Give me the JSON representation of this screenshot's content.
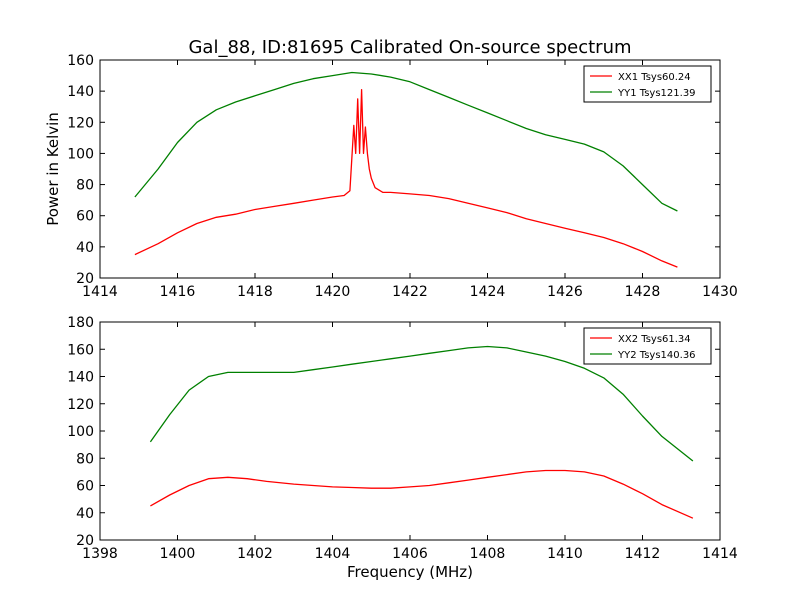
{
  "figure": {
    "title": "Gal_88, ID:81695 Calibrated On-source spectrum",
    "xlabel": "Frequency (MHz)",
    "ylabel": "Power in Kelvin"
  },
  "chart_data": [
    {
      "type": "line",
      "title": "Gal_88, ID:81695 Calibrated On-source spectrum",
      "ylabel": "Power in Kelvin",
      "xlabel": "",
      "xlim": [
        1414,
        1430
      ],
      "ylim": [
        20,
        160
      ],
      "xticks": [
        1414,
        1416,
        1418,
        1420,
        1422,
        1424,
        1426,
        1428,
        1430
      ],
      "yticks": [
        20,
        40,
        60,
        80,
        100,
        120,
        140,
        160
      ],
      "grid": false,
      "legend_position": "top-right",
      "series": [
        {
          "name": "XX1 Tsys60.24",
          "color": "#ff0000",
          "x": [
            1414.9,
            1415.5,
            1416,
            1416.5,
            1417,
            1417.5,
            1418,
            1418.5,
            1419,
            1419.5,
            1420,
            1420.3,
            1420.45,
            1420.55,
            1420.6,
            1420.65,
            1420.7,
            1420.75,
            1420.8,
            1420.85,
            1420.9,
            1420.95,
            1421.0,
            1421.1,
            1421.3,
            1421.5,
            1422,
            1422.5,
            1423,
            1423.5,
            1424,
            1424.5,
            1425,
            1425.5,
            1426,
            1426.5,
            1427,
            1427.5,
            1428,
            1428.5,
            1428.9
          ],
          "y": [
            35,
            42,
            49,
            55,
            59,
            61,
            64,
            66,
            68,
            70,
            72,
            73,
            76,
            118,
            100,
            135,
            100,
            141,
            100,
            117,
            100,
            90,
            84,
            78,
            75,
            75,
            74,
            73,
            71,
            68,
            65,
            62,
            58,
            55,
            52,
            49,
            46,
            42,
            37,
            31,
            27
          ]
        },
        {
          "name": "YY1 Tsys121.39",
          "color": "#008000",
          "x": [
            1414.9,
            1415.5,
            1416,
            1416.5,
            1417,
            1417.5,
            1418,
            1418.5,
            1419,
            1419.5,
            1420,
            1420.5,
            1421,
            1421.5,
            1422,
            1422.5,
            1423,
            1423.5,
            1424,
            1424.5,
            1425,
            1425.5,
            1426,
            1426.5,
            1427,
            1427.5,
            1428,
            1428.5,
            1428.9
          ],
          "y": [
            72,
            90,
            107,
            120,
            128,
            133,
            137,
            141,
            145,
            148,
            150,
            152,
            151,
            149,
            146,
            141,
            136,
            131,
            126,
            121,
            116,
            112,
            109,
            106,
            101,
            92,
            80,
            68,
            63
          ]
        }
      ]
    },
    {
      "type": "line",
      "title": "",
      "xlabel": "Frequency (MHz)",
      "ylabel": "",
      "xlim": [
        1398,
        1414
      ],
      "ylim": [
        20,
        180
      ],
      "xticks": [
        1398,
        1400,
        1402,
        1404,
        1406,
        1408,
        1410,
        1412,
        1414
      ],
      "yticks": [
        20,
        40,
        60,
        80,
        100,
        120,
        140,
        160,
        180
      ],
      "grid": false,
      "legend_position": "top-right",
      "series": [
        {
          "name": "XX2 Tsys61.34",
          "color": "#ff0000",
          "x": [
            1399.3,
            1399.8,
            1400.3,
            1400.8,
            1401.3,
            1401.8,
            1402.3,
            1403,
            1403.5,
            1404,
            1404.5,
            1405,
            1405.5,
            1406,
            1406.5,
            1407,
            1407.5,
            1408,
            1408.5,
            1409,
            1409.5,
            1410,
            1410.5,
            1411,
            1411.5,
            1412,
            1412.5,
            1413.3
          ],
          "y": [
            45,
            53,
            60,
            65,
            66,
            65,
            63,
            61,
            60,
            59,
            58.5,
            58,
            58,
            59,
            60,
            62,
            64,
            66,
            68,
            70,
            71,
            71,
            70,
            67,
            61,
            54,
            46,
            36
          ]
        },
        {
          "name": "YY2 Tsys140.36",
          "color": "#008000",
          "x": [
            1399.3,
            1399.8,
            1400.3,
            1400.8,
            1401.3,
            1401.8,
            1402.3,
            1403,
            1403.5,
            1404,
            1404.5,
            1405,
            1405.5,
            1406,
            1406.5,
            1407,
            1407.5,
            1408,
            1408.5,
            1409,
            1409.5,
            1410,
            1410.5,
            1411,
            1411.5,
            1412,
            1412.5,
            1413.3
          ],
          "y": [
            92,
            112,
            130,
            140,
            143,
            143,
            143,
            143,
            145,
            147,
            149,
            151,
            153,
            155,
            157,
            159,
            161,
            162,
            161,
            158,
            155,
            151,
            146,
            139,
            127,
            111,
            96,
            78
          ]
        }
      ]
    }
  ]
}
